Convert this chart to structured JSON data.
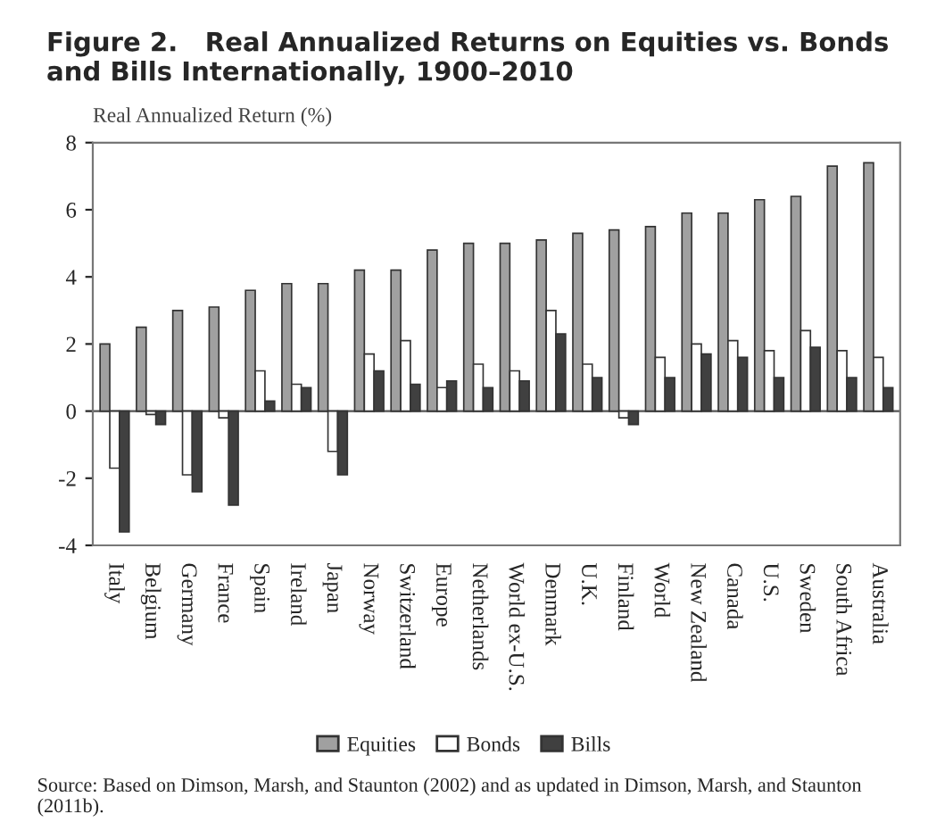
{
  "chart_data": {
    "type": "bar",
    "title": "Figure 2.   Real Annualized Returns on Equities vs. Bonds and Bills Internationally, 1900–2010",
    "ylabel": "Real Annualized Return (%)",
    "categories": [
      "Italy",
      "Belgium",
      "Germany",
      "France",
      "Spain",
      "Ireland",
      "Japan",
      "Norway",
      "Switzerland",
      "Europe",
      "Netherlands",
      "World ex-U.S.",
      "Denmark",
      "U.K.",
      "Finland",
      "World",
      "New Zealand",
      "Canada",
      "U.S.",
      "Sweden",
      "South Africa",
      "Australia"
    ],
    "series": [
      {
        "name": "Equities",
        "color": "#a0a0a0",
        "values": [
          2.0,
          2.5,
          3.0,
          3.1,
          3.6,
          3.8,
          3.8,
          4.2,
          4.2,
          4.8,
          5.0,
          5.0,
          5.1,
          5.3,
          5.4,
          5.5,
          5.9,
          5.9,
          6.3,
          6.4,
          7.3,
          7.4
        ]
      },
      {
        "name": "Bonds",
        "color": "#ffffff",
        "values": [
          -1.7,
          -0.1,
          -1.9,
          -0.2,
          1.2,
          0.8,
          -1.2,
          1.7,
          2.1,
          0.7,
          1.4,
          1.2,
          3.0,
          1.4,
          -0.2,
          1.6,
          2.0,
          2.1,
          1.8,
          2.4,
          1.8,
          1.6
        ]
      },
      {
        "name": "Bills",
        "color": "#404040",
        "values": [
          -3.6,
          -0.4,
          -2.4,
          -2.8,
          0.3,
          0.7,
          -1.9,
          1.2,
          0.8,
          0.9,
          0.7,
          0.9,
          2.3,
          1.0,
          -0.4,
          1.0,
          1.7,
          1.6,
          1.0,
          1.9,
          1.0,
          0.7
        ]
      }
    ],
    "ref_lines": [
      {
        "axis": "y",
        "value": 0,
        "color": "#555555"
      }
    ],
    "ylim": [
      -4,
      8
    ],
    "yticks": [
      -4,
      -2,
      0,
      2,
      4,
      6,
      8
    ],
    "legend": "bottom",
    "grid": false,
    "annotations": [
      "Source: Based on Dimson, Marsh, and Staunton (2002) and as updated in Dimson, Marsh, and Staunton (2011b)."
    ]
  }
}
